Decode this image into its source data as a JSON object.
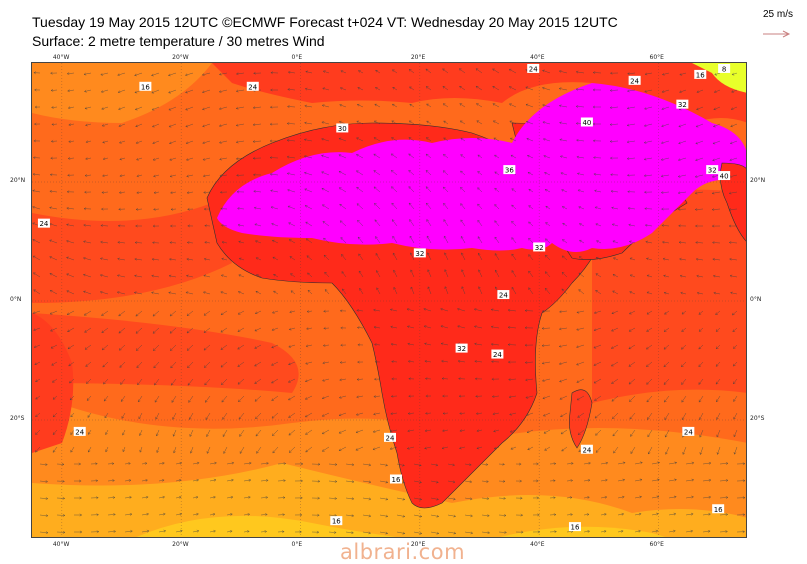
{
  "title": {
    "line1": "Tuesday 19 May 2015 12UTC ©ECMWF Forecast t+024 VT: Wednesday 20 May 2015 12UTC",
    "line2": "Surface: 2 metre temperature / 30 metres Wind"
  },
  "legend": {
    "speed_label": "25 m/s",
    "arrow_color": "#c98080"
  },
  "axes": {
    "top_lon": [
      "40°W",
      "20°W",
      "0°E",
      "20°E",
      "40°E",
      "60°E"
    ],
    "bottom_lon": [
      "40°W",
      "20°W",
      "0°E",
      "20°E",
      "40°E",
      "60°E"
    ],
    "left_lat": [
      "20°N",
      "0°N",
      "20°S"
    ],
    "right_lat": [
      "20°N",
      "0°N",
      "20°S"
    ]
  },
  "contour_labels": [
    {
      "text": "24",
      "lon": -8,
      "lat": 36
    },
    {
      "text": "16",
      "lon": -26,
      "lat": 36
    },
    {
      "text": "24",
      "lon": -43,
      "lat": 13
    },
    {
      "text": "30",
      "lon": 7,
      "lat": 29
    },
    {
      "text": "32",
      "lon": 20,
      "lat": 8
    },
    {
      "text": "36",
      "lon": 35,
      "lat": 22
    },
    {
      "text": "32",
      "lon": 40,
      "lat": 9
    },
    {
      "text": "24",
      "lon": 34,
      "lat": 1
    },
    {
      "text": "32",
      "lon": 27,
      "lat": -8
    },
    {
      "text": "24",
      "lon": 33,
      "lat": -9
    },
    {
      "text": "24",
      "lon": 15,
      "lat": -23
    },
    {
      "text": "16",
      "lon": 16,
      "lat": -30
    },
    {
      "text": "24",
      "lon": -37,
      "lat": -22
    },
    {
      "text": "16",
      "lon": 6,
      "lat": -37
    },
    {
      "text": "16",
      "lon": 46,
      "lat": -38
    },
    {
      "text": "16",
      "lon": 70,
      "lat": -35
    },
    {
      "text": "24",
      "lon": 48,
      "lat": -25
    },
    {
      "text": "24",
      "lon": 65,
      "lat": -22
    },
    {
      "text": "24",
      "lon": 39,
      "lat": 39
    },
    {
      "text": "24",
      "lon": 56,
      "lat": 37
    },
    {
      "text": "16",
      "lon": 67,
      "lat": 38
    },
    {
      "text": "8",
      "lon": 71,
      "lat": 39
    },
    {
      "text": "40",
      "lon": 48,
      "lat": 30
    },
    {
      "text": "32",
      "lon": 64,
      "lat": 33
    },
    {
      "text": "32",
      "lon": 69,
      "lat": 22
    },
    {
      "text": "40",
      "lon": 71,
      "lat": 21
    }
  ],
  "watermark": "albrari.com",
  "colors": {
    "hot_magenta": "#ff00ff",
    "very_hot": "#ff2a1a",
    "hot": "#ff3c1e",
    "warm": "#ff6a1c",
    "mild": "#ff9a1e",
    "cool": "#ffc81e",
    "cold_yellow": "#e8ff2a",
    "coast": "#303030",
    "arrow": "#404040"
  }
}
